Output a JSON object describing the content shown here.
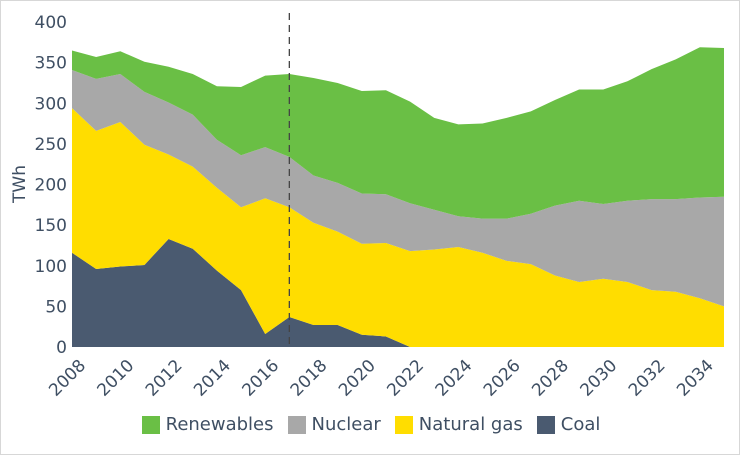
{
  "chart_data": {
    "type": "area",
    "stacked": true,
    "title": "",
    "xlabel": "",
    "ylabel": "TWh",
    "ylim": [
      0,
      400
    ],
    "y_ticks": [
      0,
      50,
      100,
      150,
      200,
      250,
      300,
      350,
      400
    ],
    "x_tick_labels": [
      "2008",
      "2010",
      "2012",
      "2014",
      "2016",
      "2018",
      "2020",
      "2022",
      "2024",
      "2026",
      "2028",
      "2030",
      "2032",
      "2034"
    ],
    "x": [
      2008,
      2009,
      2010,
      2011,
      2012,
      2013,
      2014,
      2015,
      2016,
      2017,
      2018,
      2019,
      2020,
      2021,
      2022,
      2023,
      2024,
      2025,
      2026,
      2027,
      2028,
      2029,
      2030,
      2031,
      2032,
      2033,
      2034,
      2035
    ],
    "vertical_marker_x": 2017,
    "grid": false,
    "legend_position": "bottom",
    "series": [
      {
        "name": "Coal",
        "color": "#4a5a70",
        "values": [
          116,
          96,
          99,
          101,
          133,
          121,
          94,
          70,
          16,
          37,
          27,
          27,
          15,
          13,
          0,
          0,
          0,
          0,
          0,
          0,
          0,
          0,
          0,
          0,
          0,
          0,
          0,
          0
        ]
      },
      {
        "name": "Natural gas",
        "color": "#ffdd00",
        "values": [
          178,
          170,
          178,
          148,
          104,
          101,
          102,
          102,
          167,
          135,
          126,
          115,
          112,
          115,
          118,
          120,
          123,
          116,
          106,
          102,
          88,
          80,
          84,
          80,
          70,
          68,
          60,
          50
        ]
      },
      {
        "name": "Nuclear",
        "color": "#a8a8a8",
        "values": [
          47,
          64,
          59,
          65,
          64,
          64,
          59,
          64,
          63,
          62,
          58,
          60,
          62,
          60,
          59,
          49,
          38,
          42,
          52,
          62,
          86,
          100,
          92,
          100,
          112,
          114,
          124,
          135
        ]
      },
      {
        "name": "Renewables",
        "color": "#6abf45",
        "values": [
          24,
          27,
          28,
          37,
          44,
          50,
          66,
          84,
          88,
          102,
          120,
          123,
          126,
          128,
          125,
          113,
          113,
          117,
          124,
          126,
          130,
          137,
          141,
          147,
          160,
          172,
          185,
          183
        ]
      }
    ]
  }
}
